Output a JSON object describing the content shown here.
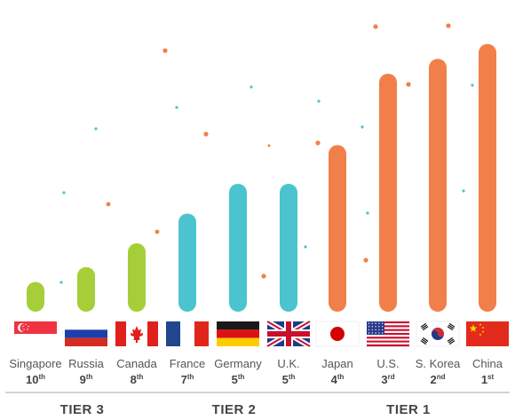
{
  "chart_data": {
    "type": "bar",
    "title": "",
    "xlabel": "",
    "ylabel": "",
    "ylim": [
      0,
      10
    ],
    "grid": false,
    "legend": "none",
    "categories": [
      "Singapore",
      "Russia",
      "Canada",
      "France",
      "Germany",
      "U.K.",
      "Japan",
      "U.S.",
      "S. Korea",
      "China"
    ],
    "values": [
      1.0,
      1.5,
      2.3,
      3.3,
      4.3,
      4.3,
      5.6,
      8.0,
      8.5,
      9.0
    ],
    "ranks": [
      {
        "num": "10",
        "suffix": "th"
      },
      {
        "num": "9",
        "suffix": "th"
      },
      {
        "num": "8",
        "suffix": "th"
      },
      {
        "num": "7",
        "suffix": "th"
      },
      {
        "num": "5",
        "suffix": "th"
      },
      {
        "num": "5",
        "suffix": "th"
      },
      {
        "num": "4",
        "suffix": "th"
      },
      {
        "num": "3",
        "suffix": "rd"
      },
      {
        "num": "2",
        "suffix": "nd"
      },
      {
        "num": "1",
        "suffix": "st"
      }
    ],
    "tiers": [
      {
        "label": "TIER 3",
        "first": 0,
        "last": 2,
        "color": "#A6CE39"
      },
      {
        "label": "TIER 2",
        "first": 3,
        "last": 5,
        "color": "#4BC4CF"
      },
      {
        "label": "TIER 1",
        "first": 6,
        "last": 9,
        "color": "#F07F4A"
      }
    ],
    "flags": [
      "singapore-flag",
      "russia-flag",
      "canada-flag",
      "france-flag",
      "germany-flag",
      "uk-flag",
      "japan-flag",
      "us-flag",
      "south-korea-flag",
      "china-flag"
    ],
    "colors": {
      "text": "#555555",
      "tier_line": "#aaaaaa"
    }
  }
}
